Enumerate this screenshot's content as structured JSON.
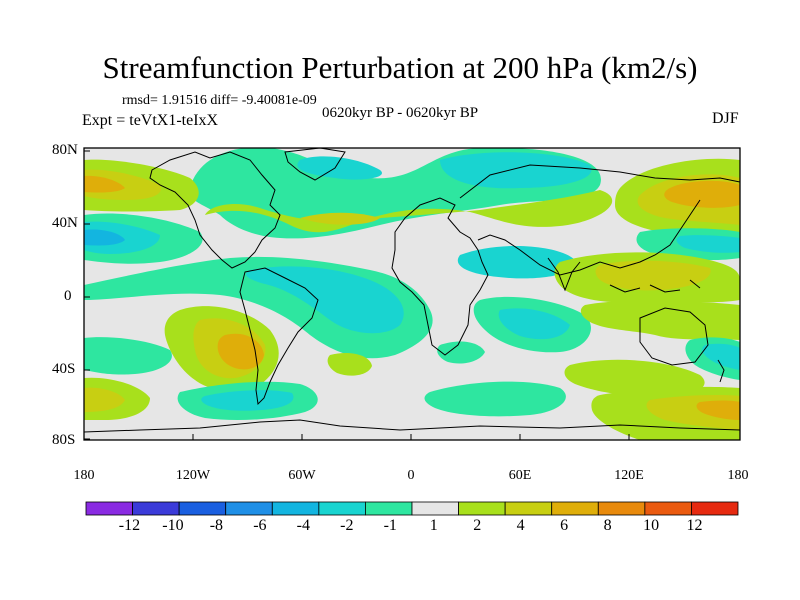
{
  "header": {
    "title": "Streamfunction Perturbation at 200 hPa (km2/s)",
    "stats": "rmsd= 1.91516  diff= -9.40081e-09",
    "experiment": "Expt = teVtX1-teIxX",
    "period": "0620kyr BP - 0620kyr BP",
    "season": "DJF"
  },
  "map": {
    "lat_labels": [
      "80N",
      "40N",
      "0",
      "40S",
      "80S"
    ],
    "lon_labels": [
      "180",
      "120W",
      "60W",
      "0",
      "60E",
      "120E",
      "180"
    ],
    "background_color": "#e6e6e6"
  },
  "colorbar": {
    "labels": [
      "-12",
      "-10",
      "-8",
      "-6",
      "-4",
      "-2",
      "-1",
      "1",
      "2",
      "4",
      "6",
      "8",
      "10",
      "12"
    ],
    "colors": [
      "#8a2be2",
      "#3b3bd9",
      "#1a5fe0",
      "#1f8fe6",
      "#13b5e0",
      "#19d4d0",
      "#2ee6a0",
      "#e6e6e6",
      "#a8e01c",
      "#c8cf12",
      "#dfae0a",
      "#e88a0c",
      "#ea5a10",
      "#e62a10"
    ]
  }
}
